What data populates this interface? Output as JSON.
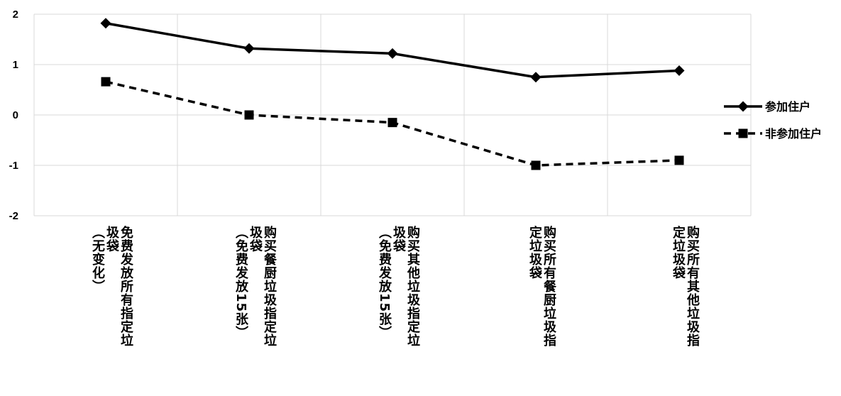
{
  "chart_data": {
    "type": "line",
    "categories": [
      [
        "免费发放所有指定垃",
        "圾袋",
        "（无变化）"
      ],
      [
        "购买餐厨垃圾指定垃",
        "圾袋",
        "（免费发放15张）"
      ],
      [
        "购买其他垃圾指定垃",
        "圾袋",
        "（免费发放15张）"
      ],
      [
        "购买所有餐厨垃圾指",
        "定垃圾袋"
      ],
      [
        "购买所有其他垃圾指",
        "定垃圾袋"
      ]
    ],
    "series": [
      {
        "name": "参加住户",
        "values": [
          1.82,
          1.32,
          1.22,
          0.75,
          0.88
        ],
        "color": "#000000",
        "style": "solid",
        "marker": "diamond"
      },
      {
        "name": "非参加住户",
        "values": [
          0.66,
          0.0,
          -0.15,
          -1.0,
          -0.9
        ],
        "color": "#000000",
        "style": "dashed",
        "marker": "square"
      }
    ],
    "ylim": [
      -2,
      2
    ],
    "yticks": [
      "2",
      "1",
      "0",
      "-1",
      "-2"
    ],
    "grid": true,
    "legend": "right"
  }
}
